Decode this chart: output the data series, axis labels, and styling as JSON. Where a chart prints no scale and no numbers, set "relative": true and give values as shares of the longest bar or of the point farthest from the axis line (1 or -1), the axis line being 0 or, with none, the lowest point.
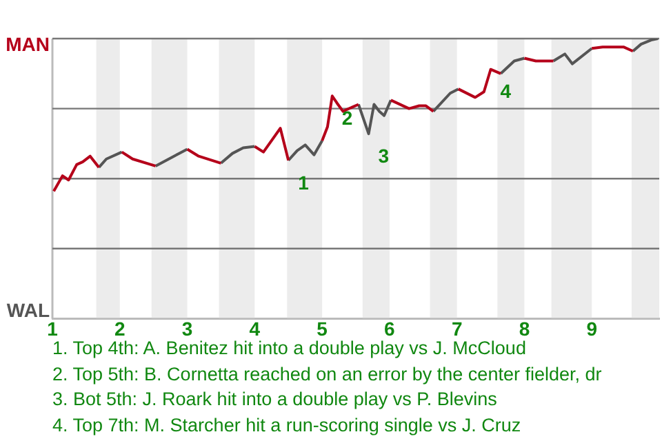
{
  "chart_data": {
    "type": "line",
    "relative": true,
    "series": [
      {
        "color": "#b5001a",
        "x": [
          1.02,
          1.15,
          1.24,
          1.36,
          1.45,
          1.56,
          1.69,
          1.75,
          2.03,
          2.19,
          2.53,
          2.75,
          3.0,
          3.17,
          3.5,
          3.75,
          4.0,
          4.13,
          4.38,
          4.5,
          4.75,
          5.0,
          5.08,
          5.15,
          5.22,
          5.31,
          5.35,
          5.54,
          5.8,
          6.02,
          6.29,
          6.44,
          6.54,
          6.65,
          6.8,
          7.02,
          7.27,
          7.4,
          7.5,
          7.65,
          7.8,
          8.0,
          8.17,
          8.43,
          8.7,
          9.0,
          9.16,
          9.47,
          9.61
        ],
        "values": [
          0.455,
          0.51,
          0.495,
          0.55,
          0.56,
          0.58,
          0.54,
          null,
          0.595,
          0.57,
          0.545,
          null,
          0.605,
          0.58,
          0.555,
          null,
          0.615,
          0.595,
          0.68,
          0.565,
          null,
          0.635,
          0.685,
          0.795,
          0.77,
          0.74,
          0.745,
          0.765,
          null,
          0.78,
          0.75,
          0.76,
          0.76,
          0.74,
          null,
          0.82,
          0.79,
          0.81,
          0.89,
          0.875,
          null,
          0.93,
          0.92,
          0.92,
          null,
          0.965,
          0.97,
          0.97,
          0.955
        ]
      },
      {
        "color": "#555555",
        "x": [
          1.69,
          1.8,
          2.03,
          2.3,
          2.53,
          3.0,
          3.1,
          3.5,
          3.67,
          3.83,
          4.0,
          4.2,
          4.5,
          4.63,
          4.75,
          4.88,
          5.0,
          5.2,
          5.54,
          5.69,
          5.77,
          5.85,
          5.92,
          6.02,
          6.3,
          6.65,
          6.9,
          7.02,
          7.2,
          7.65,
          7.85,
          8.0,
          8.2,
          8.43,
          8.6,
          8.71,
          9.0,
          9.3,
          9.61,
          9.73,
          9.88,
          9.98
        ],
        "values": [
          0.54,
          0.57,
          0.595,
          null,
          0.545,
          0.605,
          null,
          0.555,
          0.59,
          0.61,
          0.615,
          null,
          0.565,
          0.6,
          0.62,
          0.585,
          0.635,
          null,
          0.765,
          0.66,
          0.765,
          0.74,
          0.725,
          0.78,
          null,
          0.74,
          0.805,
          0.82,
          null,
          0.875,
          0.92,
          0.93,
          null,
          0.92,
          0.945,
          0.91,
          0.965,
          null,
          0.955,
          0.98,
          0.995,
          1
        ]
      }
    ],
    "xlim": [
      1,
      10
    ],
    "xticks": [
      1,
      2,
      3,
      4,
      5,
      6,
      7,
      8,
      9
    ],
    "marker": "none",
    "ref_lines": [
      {
        "axis": "y",
        "value": 0,
        "label": "WAL",
        "color": "#bbbbbb"
      },
      {
        "axis": "y",
        "value": 0.25,
        "color": "#777777"
      },
      {
        "axis": "y",
        "value": 0.5,
        "color": "#777777"
      },
      {
        "axis": "y",
        "value": 0.75,
        "color": "#777777"
      },
      {
        "axis": "y",
        "value": 1,
        "label": "MAN",
        "color": "#777777"
      }
    ],
    "bands": [
      {
        "axis": "x",
        "from": 1.65,
        "to": 2,
        "color": "#ececec"
      },
      {
        "axis": "x",
        "from": 2.47,
        "to": 3,
        "color": "#ececec"
      },
      {
        "axis": "x",
        "from": 3.47,
        "to": 4,
        "color": "#ececec"
      },
      {
        "axis": "x",
        "from": 4.48,
        "to": 5,
        "color": "#ececec"
      },
      {
        "axis": "x",
        "from": 5.6,
        "to": 6,
        "color": "#ececec"
      },
      {
        "axis": "x",
        "from": 6.6,
        "to": 7,
        "color": "#ececec"
      },
      {
        "axis": "x",
        "from": 7.6,
        "to": 8,
        "color": "#ececec"
      },
      {
        "axis": "x",
        "from": 8.4,
        "to": 9,
        "color": "#ececec"
      },
      {
        "axis": "x",
        "from": 9.59,
        "to": 10,
        "color": "#ececec"
      }
    ],
    "annotations": [
      {
        "text": "1",
        "x": 4.5,
        "y": 0.565
      },
      {
        "text": "2",
        "x": 5.15,
        "y": 0.795
      },
      {
        "text": "3",
        "x": 5.69,
        "y": 0.66
      },
      {
        "text": "4",
        "x": 7.5,
        "y": 0.89
      },
      "1. Top 4th: A. Benitez hit into a double play vs J. McCloud",
      "2. Top 5th: B. Cornetta reached on an error by the center fielder, dr",
      "3. Bot 5th: J. Roark hit into a double play vs P. Blevins",
      "4. Top 7th: M. Starcher hit a run-scoring single vs J. Cruz"
    ]
  }
}
